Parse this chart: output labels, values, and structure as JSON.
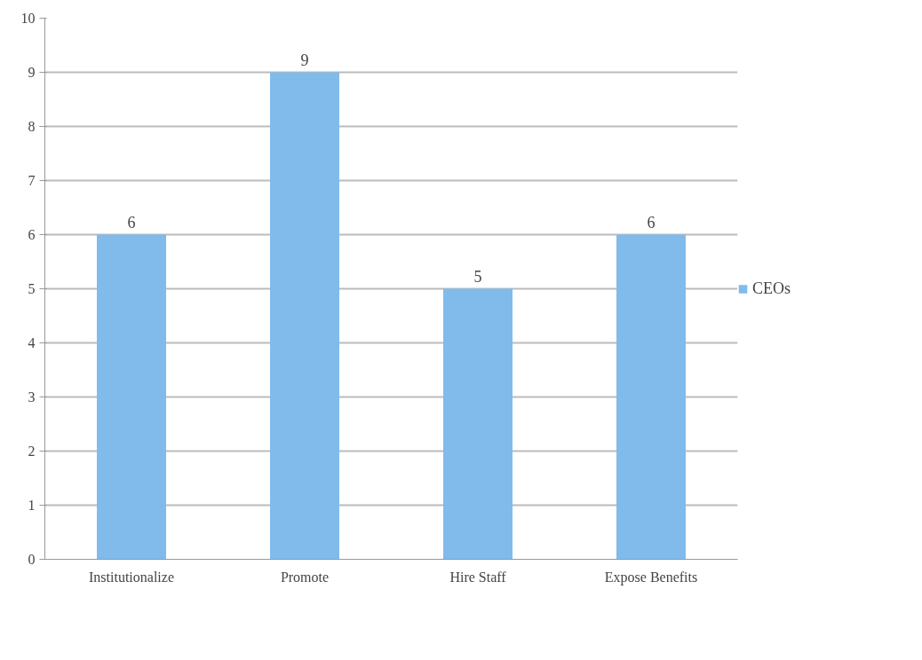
{
  "chart_data": {
    "type": "bar",
    "categories": [
      "Institutionalize",
      "Promote",
      "Hire Staff",
      "Expose Benefits"
    ],
    "series": [
      {
        "name": "CEOs",
        "color": "#80bbec",
        "values": [
          6,
          9,
          5,
          6
        ]
      }
    ],
    "ylim": [
      0,
      10
    ],
    "yticks": [
      0,
      1,
      2,
      3,
      4,
      5,
      6,
      7,
      8,
      9,
      10
    ],
    "grid": "y",
    "legend": "right",
    "data_labels": true
  }
}
